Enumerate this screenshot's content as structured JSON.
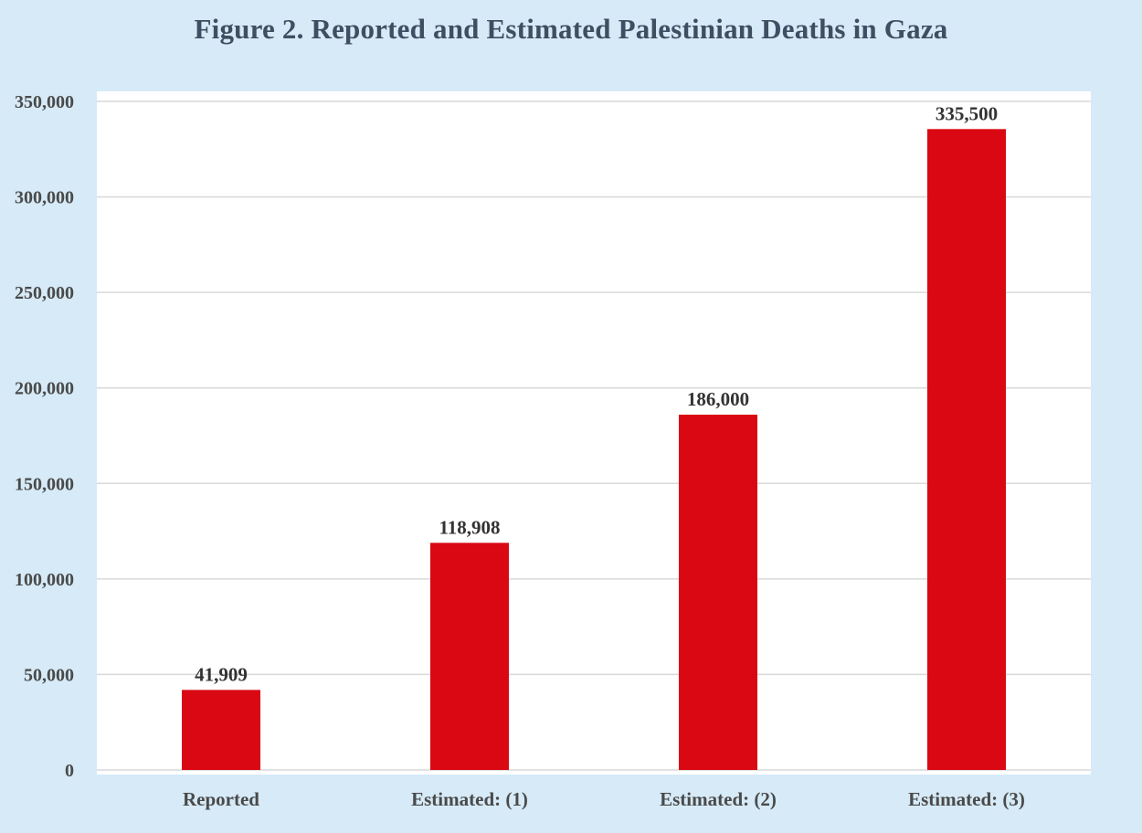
{
  "chart_data": {
    "type": "bar",
    "title": "Figure 2. Reported and Estimated Palestinian Deaths in Gaza",
    "xlabel": "",
    "ylabel": "",
    "categories": [
      "Reported",
      "Estimated: (1)",
      "Estimated: (2)",
      "Estimated: (3)"
    ],
    "values": [
      41909,
      118908,
      186000,
      335500
    ],
    "data_labels": [
      "41,909",
      "118,908",
      "186,000",
      "335,500"
    ],
    "ylim": [
      0,
      350000
    ],
    "yticks": [
      0,
      50000,
      100000,
      150000,
      200000,
      250000,
      300000,
      350000
    ],
    "ytick_labels": [
      "0",
      "50,000",
      "100,000",
      "150,000",
      "200,000",
      "250,000",
      "300,000",
      "350,000"
    ],
    "grid": "horizontal",
    "legend": "none",
    "colors": {
      "bar": "#d90813",
      "background": "#d6eaf7",
      "plot_area": "#ffffff",
      "gridline": "#d9d9d9",
      "title_text": "#3f4f63"
    }
  }
}
